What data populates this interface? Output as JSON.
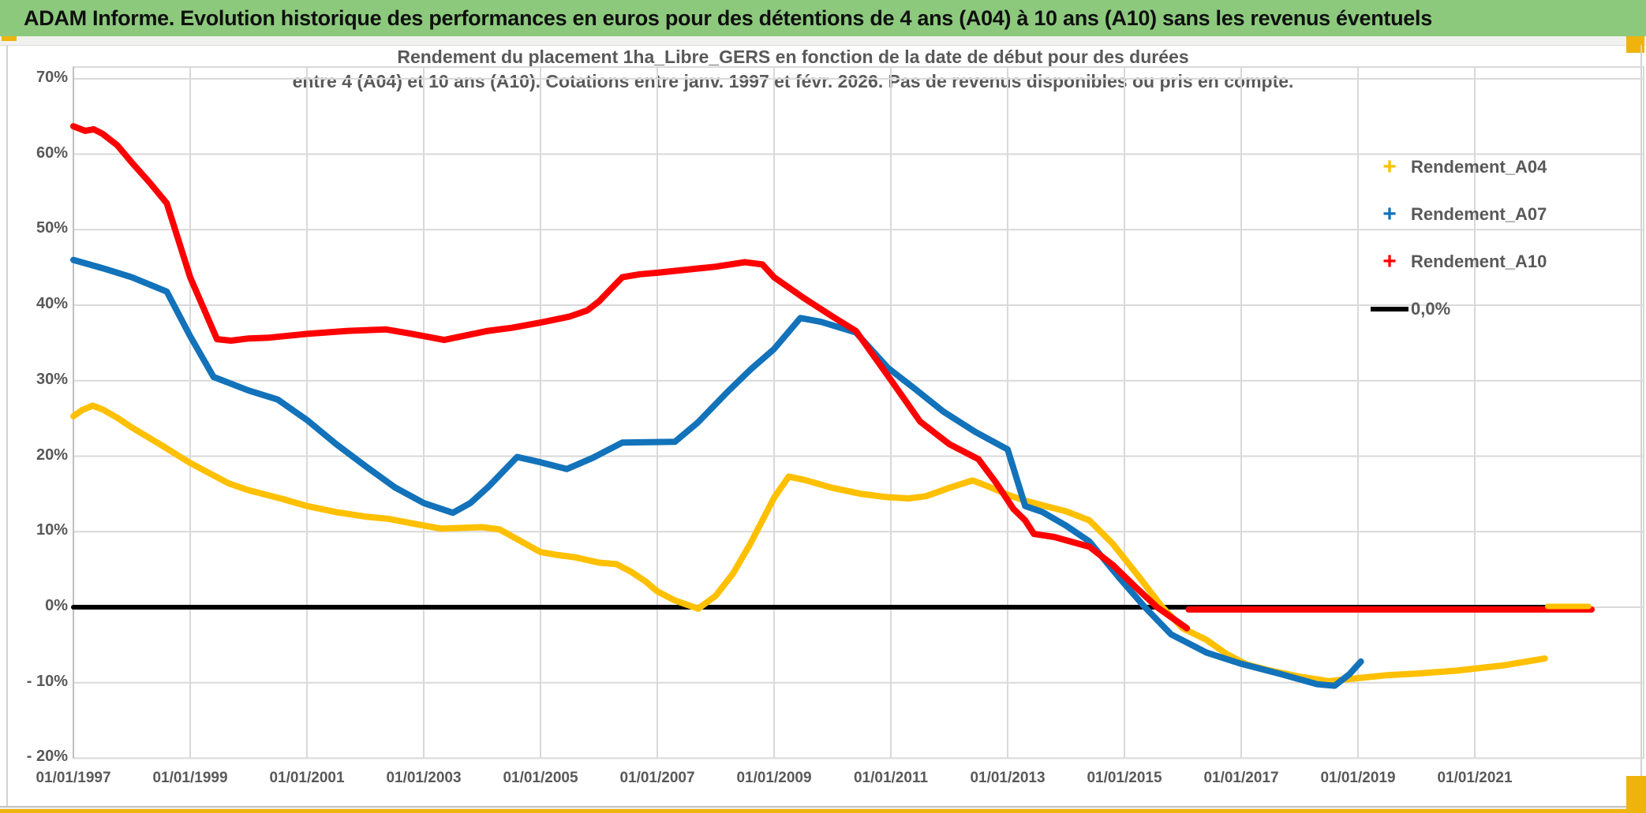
{
  "header": {
    "title": "ADAM Informe. Evolution historique des performances en euros pour des détentions de 4 ans (A04) à 10 ans (A10) sans les revenus éventuels"
  },
  "chart": {
    "title_line1": "Rendement du placement 1ha_Libre_GERS en fonction de la date de début pour des durées",
    "title_line2": "entre 4 (A04) et 10 ans (A10). Cotations entre janv. 1997 et févr. 2026. Pas de revenus disponibles ou pris en compte."
  },
  "legend": {
    "items": [
      {
        "label": "Rendement_A04",
        "marker": "plus",
        "color": "#FFC000"
      },
      {
        "label": "Rendement_A07",
        "marker": "plus",
        "color": "#1272BA"
      },
      {
        "label": "Rendement_A10",
        "marker": "plus",
        "color": "#FF0000"
      },
      {
        "label": "0,0%",
        "marker": "line",
        "color": "#000000"
      }
    ]
  },
  "colors": {
    "header_green": "#8CC97D",
    "accent_gold": "#EFB40C",
    "grid": "#D9D9D9",
    "axis": "#BFBFBF",
    "text_gray": "#595959",
    "series_a04": "#FFC000",
    "series_a07": "#1272BA",
    "series_a10": "#FF0000",
    "zero_line": "#000000"
  },
  "chart_data": {
    "type": "line",
    "title": "Rendement du placement 1ha_Libre_GERS en fonction de la date de début pour des durées entre 4 (A04) et 10 ans (A10). Cotations entre janv. 1997 et févr. 2026. Pas de revenus disponibles ou pris en compte.",
    "x_axis": {
      "tick_labels": [
        "01/01/1997",
        "01/01/1999",
        "01/01/2001",
        "01/01/2003",
        "01/01/2005",
        "01/01/2007",
        "01/01/2009",
        "01/01/2011",
        "01/01/2013",
        "01/01/2015",
        "01/01/2017",
        "01/01/2019",
        "01/01/2021"
      ],
      "tick_years": [
        1997,
        1999,
        2001,
        2003,
        2005,
        2007,
        2009,
        2011,
        2013,
        2015,
        2017,
        2019,
        2021
      ],
      "xlim": [
        1997,
        2023.9
      ],
      "grid": true
    },
    "y_axis": {
      "tick_labels": [
        "70%",
        "60%",
        "50%",
        "40%",
        "30%",
        "20%",
        "10%",
        "0%",
        "- 10%",
        "- 20%"
      ],
      "tick_values": [
        70,
        60,
        50,
        40,
        30,
        20,
        10,
        0,
        -10,
        -20
      ],
      "ylim": [
        -20,
        70
      ],
      "unit": "percent",
      "grid": true
    },
    "legend_position": "right-inside",
    "series": [
      {
        "name": "Rendement_A04",
        "color": "#FFC000",
        "points": [
          [
            1997.0,
            25.3
          ],
          [
            1997.15,
            26.1
          ],
          [
            1997.33,
            26.7
          ],
          [
            1997.5,
            26.2
          ],
          [
            1997.75,
            25.1
          ],
          [
            1998.0,
            23.8
          ],
          [
            1998.5,
            21.5
          ],
          [
            1999.0,
            19.1
          ],
          [
            1999.66,
            16.4
          ],
          [
            2000.0,
            15.5
          ],
          [
            2000.6,
            14.3
          ],
          [
            2001.0,
            13.4
          ],
          [
            2001.5,
            12.6
          ],
          [
            2002.0,
            12.0
          ],
          [
            2002.4,
            11.7
          ],
          [
            2002.8,
            11.1
          ],
          [
            2003.3,
            10.4
          ],
          [
            2004.0,
            10.6
          ],
          [
            2004.3,
            10.3
          ],
          [
            2004.6,
            9.0
          ],
          [
            2005.0,
            7.3
          ],
          [
            2005.3,
            6.9
          ],
          [
            2005.6,
            6.6
          ],
          [
            2006.0,
            5.9
          ],
          [
            2006.3,
            5.7
          ],
          [
            2006.55,
            4.7
          ],
          [
            2006.8,
            3.4
          ],
          [
            2007.0,
            2.1
          ],
          [
            2007.3,
            0.9
          ],
          [
            2007.7,
            -0.2
          ],
          [
            2008.0,
            1.5
          ],
          [
            2008.3,
            4.5
          ],
          [
            2008.6,
            8.5
          ],
          [
            2009.0,
            14.5
          ],
          [
            2009.25,
            17.3
          ],
          [
            2009.5,
            16.9
          ],
          [
            2010.0,
            15.8
          ],
          [
            2010.5,
            15.0
          ],
          [
            2010.9,
            14.6
          ],
          [
            2011.3,
            14.4
          ],
          [
            2011.6,
            14.7
          ],
          [
            2012.0,
            15.8
          ],
          [
            2012.4,
            16.8
          ],
          [
            2012.7,
            15.9
          ],
          [
            2013.0,
            14.9
          ],
          [
            2013.3,
            14.1
          ],
          [
            2013.7,
            13.3
          ],
          [
            2014.0,
            12.7
          ],
          [
            2014.4,
            11.5
          ],
          [
            2014.8,
            8.4
          ],
          [
            2015.2,
            4.5
          ],
          [
            2015.65,
            0.0
          ],
          [
            2016.0,
            -2.8
          ],
          [
            2016.4,
            -4.3
          ],
          [
            2016.75,
            -6.2
          ],
          [
            2017.1,
            -7.6
          ],
          [
            2017.5,
            -8.4
          ],
          [
            2018.0,
            -9.2
          ],
          [
            2018.5,
            -9.8
          ],
          [
            2019.0,
            -9.4
          ],
          [
            2019.5,
            -9.0
          ],
          [
            2020.0,
            -8.8
          ],
          [
            2020.7,
            -8.4
          ],
          [
            2021.5,
            -7.7
          ],
          [
            2022.2,
            -6.8
          ]
        ],
        "zero_tail": {
          "from": 2022.25,
          "to": 2022.95,
          "value": 0.1
        }
      },
      {
        "name": "Rendement_A07",
        "color": "#1272BA",
        "points": [
          [
            1997.0,
            46.0
          ],
          [
            1997.5,
            44.9
          ],
          [
            1998.0,
            43.7
          ],
          [
            1998.6,
            41.8
          ],
          [
            1999.0,
            35.9
          ],
          [
            1999.4,
            30.5
          ],
          [
            2000.0,
            28.7
          ],
          [
            2000.5,
            27.5
          ],
          [
            2001.0,
            24.8
          ],
          [
            2001.5,
            21.6
          ],
          [
            2002.0,
            18.7
          ],
          [
            2002.5,
            15.9
          ],
          [
            2003.0,
            13.8
          ],
          [
            2003.5,
            12.5
          ],
          [
            2003.8,
            13.8
          ],
          [
            2004.1,
            15.9
          ],
          [
            2004.6,
            19.9
          ],
          [
            2005.0,
            19.2
          ],
          [
            2005.45,
            18.3
          ],
          [
            2005.9,
            19.8
          ],
          [
            2006.4,
            21.8
          ],
          [
            2007.3,
            21.9
          ],
          [
            2007.7,
            24.5
          ],
          [
            2008.2,
            28.5
          ],
          [
            2008.6,
            31.5
          ],
          [
            2009.0,
            34.2
          ],
          [
            2009.45,
            38.3
          ],
          [
            2009.8,
            37.8
          ],
          [
            2010.4,
            36.4
          ],
          [
            2010.95,
            31.7
          ],
          [
            2011.4,
            29.0
          ],
          [
            2011.9,
            25.9
          ],
          [
            2012.45,
            23.2
          ],
          [
            2013.0,
            20.9
          ],
          [
            2013.3,
            13.4
          ],
          [
            2013.6,
            12.6
          ],
          [
            2014.0,
            10.8
          ],
          [
            2014.4,
            8.7
          ],
          [
            2014.9,
            4.0
          ],
          [
            2015.35,
            0.0
          ],
          [
            2015.8,
            -3.6
          ],
          [
            2016.4,
            -6.0
          ],
          [
            2017.0,
            -7.5
          ],
          [
            2017.7,
            -8.9
          ],
          [
            2018.3,
            -10.2
          ],
          [
            2018.6,
            -10.4
          ],
          [
            2018.85,
            -8.9
          ],
          [
            2019.05,
            -7.2
          ]
        ]
      },
      {
        "name": "Rendement_A10",
        "color": "#FF0000",
        "points": [
          [
            1997.0,
            63.7
          ],
          [
            1997.2,
            63.1
          ],
          [
            1997.35,
            63.3
          ],
          [
            1997.5,
            62.7
          ],
          [
            1997.75,
            61.2
          ],
          [
            1998.0,
            58.9
          ],
          [
            1998.3,
            56.3
          ],
          [
            1998.6,
            53.5
          ],
          [
            1999.0,
            43.7
          ],
          [
            1999.46,
            35.5
          ],
          [
            1999.7,
            35.3
          ],
          [
            2000.0,
            35.6
          ],
          [
            2000.35,
            35.7
          ],
          [
            2001.0,
            36.2
          ],
          [
            2001.7,
            36.6
          ],
          [
            2002.35,
            36.8
          ],
          [
            2002.8,
            36.2
          ],
          [
            2003.35,
            35.4
          ],
          [
            2004.1,
            36.6
          ],
          [
            2004.5,
            37.0
          ],
          [
            2005.0,
            37.7
          ],
          [
            2005.5,
            38.5
          ],
          [
            2005.8,
            39.3
          ],
          [
            2006.0,
            40.5
          ],
          [
            2006.4,
            43.7
          ],
          [
            2006.7,
            44.1
          ],
          [
            2007.0,
            44.3
          ],
          [
            2007.5,
            44.7
          ],
          [
            2008.0,
            45.1
          ],
          [
            2008.5,
            45.7
          ],
          [
            2008.8,
            45.4
          ],
          [
            2009.0,
            43.7
          ],
          [
            2009.5,
            41.0
          ],
          [
            2010.0,
            38.5
          ],
          [
            2010.4,
            36.6
          ],
          [
            2011.0,
            30.1
          ],
          [
            2011.5,
            24.6
          ],
          [
            2012.0,
            21.6
          ],
          [
            2012.5,
            19.6
          ],
          [
            2012.8,
            16.5
          ],
          [
            2013.1,
            13.0
          ],
          [
            2013.3,
            11.5
          ],
          [
            2013.45,
            9.7
          ],
          [
            2013.8,
            9.3
          ],
          [
            2014.4,
            8.0
          ],
          [
            2014.8,
            5.6
          ],
          [
            2015.2,
            2.6
          ],
          [
            2015.56,
            0.0
          ],
          [
            2016.07,
            -2.8
          ]
        ],
        "zero_tail": {
          "from": 2016.1,
          "to": 2023.0,
          "value": -0.3
        }
      },
      {
        "name": "0,0%",
        "color": "#000000",
        "points": [
          [
            1997.0,
            0.0
          ],
          [
            2022.6,
            0.0
          ]
        ]
      }
    ]
  }
}
